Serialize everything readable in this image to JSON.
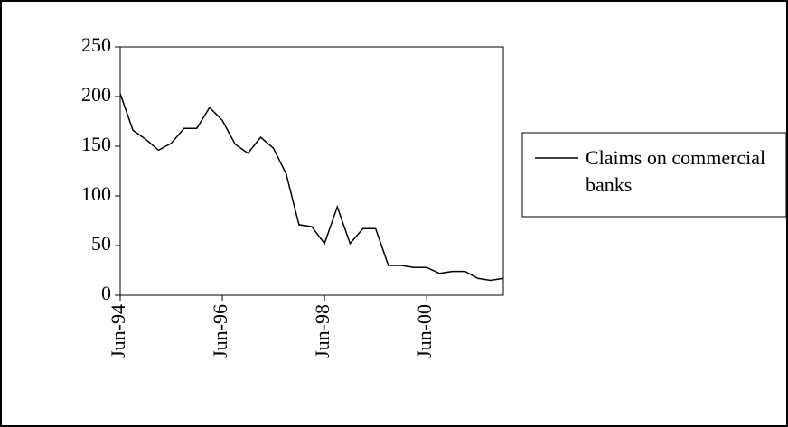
{
  "chart_data": {
    "type": "line",
    "x": [
      "Jun-94",
      "Sep-94",
      "Dec-94",
      "Mar-95",
      "Jun-95",
      "Sep-95",
      "Dec-95",
      "Mar-96",
      "Jun-96",
      "Sep-96",
      "Dec-96",
      "Mar-97",
      "Jun-97",
      "Sep-97",
      "Dec-97",
      "Mar-98",
      "Jun-98",
      "Sep-98",
      "Dec-98",
      "Mar-99",
      "Jun-99",
      "Sep-99",
      "Dec-99",
      "Mar-00",
      "Jun-00",
      "Sep-00",
      "Dec-00",
      "Mar-01",
      "Jun-01",
      "Sep-01",
      "Dec-01"
    ],
    "series": [
      {
        "name": "Claims on commercial banks",
        "color": "#000000",
        "values": [
          203,
          166,
          157,
          146,
          153,
          168,
          168,
          189,
          176,
          152,
          143,
          159,
          148,
          122,
          71,
          69,
          52,
          89,
          52,
          67,
          67,
          30,
          30,
          28,
          28,
          22,
          24,
          24,
          17,
          15,
          17
        ]
      }
    ],
    "xticks": [
      "Jun-94",
      "Jun-96",
      "Jun-98",
      "Jun-00"
    ],
    "ylim": [
      0,
      250
    ],
    "yticks": [
      0,
      50,
      100,
      150,
      200,
      250
    ],
    "grid": false,
    "legend": "right"
  }
}
